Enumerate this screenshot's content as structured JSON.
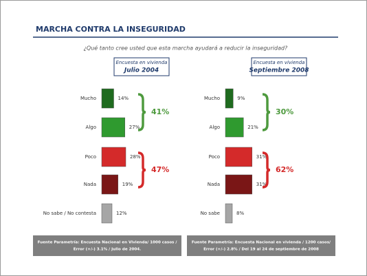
{
  "header": {
    "title": "MARCHA CONTRA LA INSEGURIDAD",
    "subtitle": "¿Qué tanto cree usted que esta marcha ayudará a reducir la inseguridad?"
  },
  "chart_data": [
    {
      "type": "bar",
      "orientation": "horizontal",
      "heading": [
        "Encuesta en vivienda",
        "Julio 2004"
      ],
      "categories": [
        "Mucho",
        "Algo",
        "Poco",
        "Nada",
        "No sabe / No contesta"
      ],
      "values": [
        14,
        27,
        28,
        19,
        12
      ],
      "value_labels": [
        "14%",
        "27%",
        "28%",
        "19%",
        "12%"
      ],
      "colors": [
        "#1f6b1f",
        "#2f9a2f",
        "#d42a2a",
        "#7a1616",
        "#a6a6a6"
      ],
      "xlim": [
        0,
        40
      ],
      "annotations": [
        {
          "text": "41%",
          "color": "#4e9a3e"
        },
        {
          "text": "47%",
          "color": "#d42a2a"
        }
      ],
      "source": [
        "Fuente Parametría: Encuesta Nacional en Vivienda/ 1000 casos /",
        "Error (+/-) 3.1% / Julio de 2004."
      ]
    },
    {
      "type": "bar",
      "orientation": "horizontal",
      "heading": [
        "Encuesta en vivienda",
        "Septiembre 2008"
      ],
      "categories": [
        "Mucho",
        "Algo",
        "Poco",
        "Nada",
        "No sabe"
      ],
      "values": [
        9,
        21,
        31,
        31,
        8
      ],
      "value_labels": [
        "9%",
        "21%",
        "31%",
        "31%",
        "8%"
      ],
      "colors": [
        "#1f6b1f",
        "#2f9a2f",
        "#d42a2a",
        "#7a1616",
        "#a6a6a6"
      ],
      "xlim": [
        0,
        40
      ],
      "annotations": [
        {
          "text": "30%",
          "color": "#4e9a3e"
        },
        {
          "text": "62%",
          "color": "#d42a2a"
        }
      ],
      "source": [
        "Fuente Parametría: Encuesta Nacional en vivienda / 1200 casos/",
        "Error (+/-) 2.8% / Del 19 al 24 de septiembre de 2008"
      ]
    }
  ]
}
